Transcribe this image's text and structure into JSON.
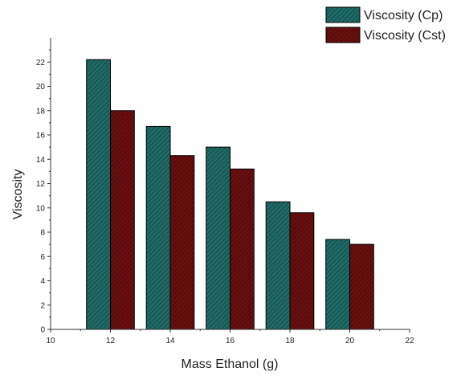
{
  "colors": {
    "series_0": "#1f6b66",
    "series_1": "#6b0f0f",
    "axis": "#333333",
    "background": "#ffffff"
  },
  "chart_data": {
    "type": "bar",
    "title": "",
    "xlabel": "Mass Ethanol (g)",
    "ylabel": "Viscosity",
    "x": [
      12,
      14,
      16,
      18,
      20
    ],
    "xlim": [
      10,
      22
    ],
    "ylim": [
      0,
      24
    ],
    "xticks": [
      10,
      12,
      14,
      16,
      18,
      20,
      22
    ],
    "yticks": [
      0,
      2,
      4,
      6,
      8,
      10,
      12,
      14,
      16,
      18,
      20,
      22
    ],
    "bar_width": 0.8,
    "series": [
      {
        "name": "Viscosity (Cp)",
        "values": [
          22.2,
          16.7,
          15.0,
          10.5,
          7.4
        ],
        "color": "#1f6b66",
        "pattern": "diagonal-hatch",
        "offset": -0.4
      },
      {
        "name": "Viscosity (Cst)",
        "values": [
          18.0,
          14.3,
          13.2,
          9.6,
          7.0
        ],
        "color": "#6b0f0f",
        "pattern": "diagonal-hatch",
        "offset": 0.4
      }
    ],
    "legend": "top-right",
    "grid": false
  }
}
